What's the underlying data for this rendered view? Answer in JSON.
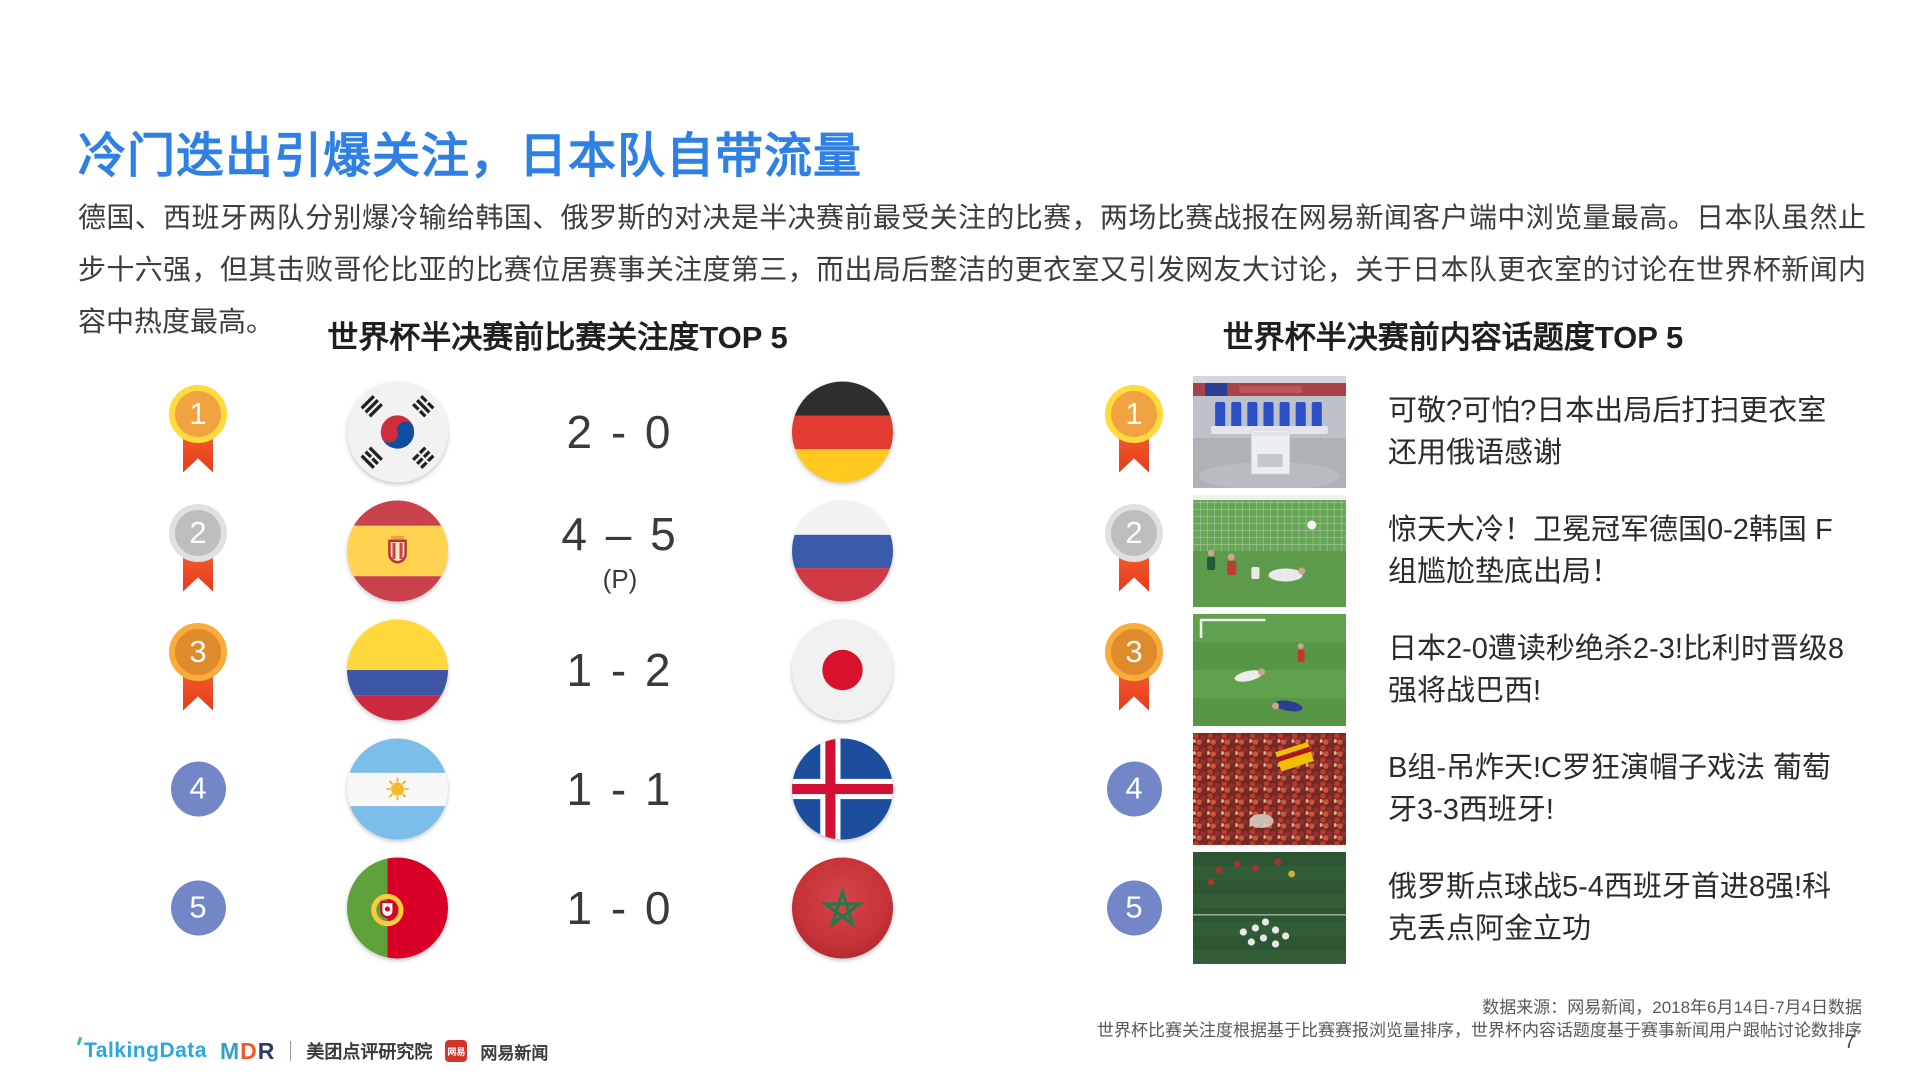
{
  "title": "冷门迭出引爆关注，日本队自带流量",
  "intro": "德国、西班牙两队分别爆冷输给韩国、俄罗斯的对决是半决赛前最受关注的比赛，两场比赛战报在网易新闻客户端中浏览量最高。日本队虽然止步十六强，但其击败哥伦比亚的比赛位居赛事关注度第三，而出局后整洁的更衣室又引发网友大讨论，关于日本队更衣室的讨论在世界杯新闻内容中热度最高。",
  "left_section": {
    "title": "世界杯半决赛前比赛关注度TOP 5",
    "rows": [
      {
        "rank": "1",
        "team_a": "south-korea",
        "score": "2 - 0",
        "note": "",
        "team_b": "germany"
      },
      {
        "rank": "2",
        "team_a": "spain",
        "score": "4 – 5",
        "note": "(P)",
        "team_b": "russia"
      },
      {
        "rank": "3",
        "team_a": "colombia",
        "score": "1 - 2",
        "note": "",
        "team_b": "japan"
      },
      {
        "rank": "4",
        "team_a": "argentina",
        "score": "1 - 1",
        "note": "",
        "team_b": "iceland"
      },
      {
        "rank": "5",
        "team_a": "portugal",
        "score": "1 - 0",
        "note": "",
        "team_b": "morocco"
      }
    ]
  },
  "right_section": {
    "title": "世界杯半决赛前内容话题度TOP 5",
    "rows": [
      {
        "rank": "1",
        "image": "japan-locker-room",
        "headline": "可敬?可怕?日本出局后打扫更衣室 还用俄语感谢"
      },
      {
        "rank": "2",
        "image": "germany-korea-goal",
        "headline": "惊天大冷！卫冕冠军德国0-2韩国 F组尴尬垫底出局！"
      },
      {
        "rank": "3",
        "image": "japan-belgium-match",
        "headline": "日本2-0遭读秒绝杀2-3!比利时晋级8强将战巴西!"
      },
      {
        "rank": "4",
        "image": "portugal-spain-fans",
        "headline": "B组-吊炸天!C罗狂演帽子戏法 葡萄牙3-3西班牙!"
      },
      {
        "rank": "5",
        "image": "russia-spain-penalties",
        "headline": "俄罗斯点球战5-4西班牙首进8强!科克丢点阿金立功"
      }
    ]
  },
  "footer": {
    "source_line1": "数据来源：网易新闻，2018年6月14日-7月4日数据",
    "source_line2": "世界杯比赛关注度根据基于比赛赛报浏览量排序，世界杯内容话题度基于赛事新闻用户跟帖讨论数排序",
    "page_number": "7"
  },
  "logos": {
    "talkingdata": "TalkingData",
    "mdr": "MDR",
    "meituan_label": "美团点评研究院",
    "netease_badge": "网易",
    "netease_label": "网易新闻"
  },
  "colors": {
    "title_blue": "#2E80E4",
    "gold": "#FFDB3C",
    "silver": "#E0E0E0",
    "bronze": "#F7AC3C",
    "ribbon_red": "#EE4A26",
    "rank_blue": "#7387C8"
  }
}
